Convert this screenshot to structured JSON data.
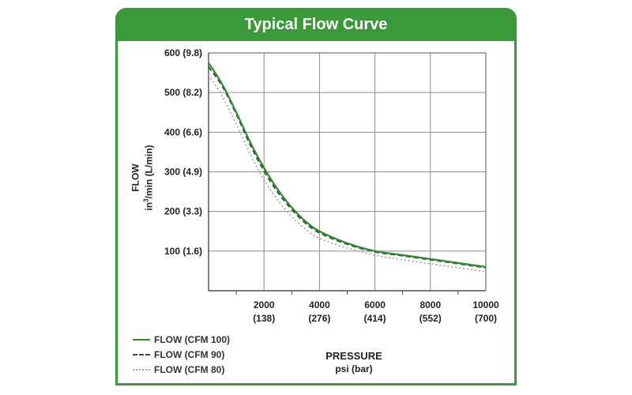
{
  "header": {
    "title": "Typical Flow Curve"
  },
  "colors": {
    "accent": "#3a9a3a",
    "series_100": "#2e8b2e",
    "series_90": "#2f4f2f",
    "series_80": "#a0a0a0",
    "grid": "#8c8c8c"
  },
  "y_ticks": [
    {
      "value": 100,
      "label": "100  (1.6)"
    },
    {
      "value": 200,
      "label": "200  (3.3)"
    },
    {
      "value": 300,
      "label": "300  (4.9)"
    },
    {
      "value": 400,
      "label": "400  (6.6)"
    },
    {
      "value": 500,
      "label": "500  (8.2)"
    },
    {
      "value": 600,
      "label": "600  (9.8)"
    }
  ],
  "x_ticks": [
    {
      "value": 2000,
      "label": "2000",
      "sub": "(138)"
    },
    {
      "value": 4000,
      "label": "4000",
      "sub": "(276)"
    },
    {
      "value": 6000,
      "label": "6000",
      "sub": "(414)"
    },
    {
      "value": 8000,
      "label": "8000",
      "sub": "(552)"
    },
    {
      "value": 10000,
      "label": "10000",
      "sub": "(700)"
    }
  ],
  "y_axis": {
    "title": "FLOW",
    "unit_prefix": "in",
    "unit_sup": "3",
    "unit_suffix": "/min  (L/min)"
  },
  "x_axis": {
    "title": "PRESSURE",
    "unit": "psi (bar)"
  },
  "chart_data": {
    "type": "line",
    "xlim": [
      0,
      10000
    ],
    "ylim": [
      0,
      600
    ],
    "grid": true,
    "legend_position": "bottom-left",
    "series": [
      {
        "name": "FLOW (CFM 100)",
        "style": "solid",
        "points": [
          [
            0,
            575
          ],
          [
            500,
            520
          ],
          [
            1000,
            450
          ],
          [
            1500,
            375
          ],
          [
            2000,
            310
          ],
          [
            2500,
            255
          ],
          [
            3000,
            210
          ],
          [
            3500,
            175
          ],
          [
            4000,
            150
          ],
          [
            5000,
            120
          ],
          [
            6000,
            100
          ],
          [
            7000,
            90
          ],
          [
            8000,
            80
          ],
          [
            9000,
            70
          ],
          [
            10000,
            60
          ]
        ]
      },
      {
        "name": "FLOW (CFM 90)",
        "style": "dashed",
        "points": [
          [
            0,
            565
          ],
          [
            500,
            515
          ],
          [
            1000,
            445
          ],
          [
            1500,
            368
          ],
          [
            2000,
            302
          ],
          [
            2500,
            248
          ],
          [
            3000,
            205
          ],
          [
            3500,
            170
          ],
          [
            4000,
            146
          ],
          [
            5000,
            117
          ],
          [
            6000,
            98
          ],
          [
            7000,
            88
          ],
          [
            8000,
            78
          ],
          [
            9000,
            68
          ],
          [
            10000,
            58
          ]
        ]
      },
      {
        "name": "FLOW (CFM 80)",
        "style": "dotted",
        "points": [
          [
            0,
            545
          ],
          [
            500,
            490
          ],
          [
            1000,
            420
          ],
          [
            1500,
            345
          ],
          [
            2000,
            280
          ],
          [
            2500,
            228
          ],
          [
            3000,
            187
          ],
          [
            3500,
            155
          ],
          [
            4000,
            132
          ],
          [
            5000,
            108
          ],
          [
            6000,
            90
          ],
          [
            7000,
            78
          ],
          [
            8000,
            68
          ],
          [
            9000,
            58
          ],
          [
            10000,
            48
          ]
        ]
      }
    ]
  }
}
